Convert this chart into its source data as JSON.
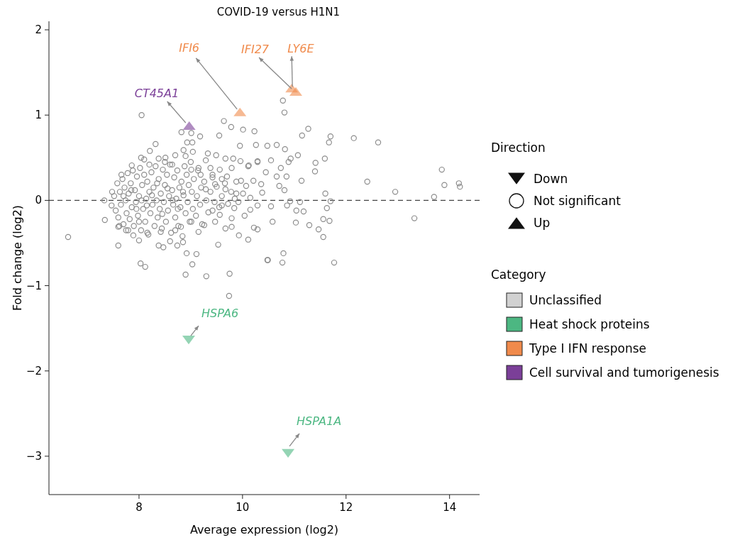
{
  "chart_data": {
    "type": "scatter",
    "title": "COVID-19 versus H1N1",
    "xlabel": "Average expression (log2)",
    "ylabel": "Fold change (log2)",
    "legend_title": "Category",
    "legend": "right",
    "xlim": [
      6.26,
      14.58
    ],
    "xticks": [
      8,
      10,
      12,
      14
    ],
    "ylim": [
      -3.45,
      2.1
    ],
    "yticks": [
      {
        "value": -3,
        "label": "−3"
      },
      {
        "value": -2,
        "label": "−2"
      },
      {
        "value": -1,
        "label": "−1"
      },
      0,
      1,
      2
    ],
    "ref_lines": [
      {
        "axis": "y",
        "value": 0,
        "color": "#444444",
        "line_style": "dashed"
      }
    ],
    "annotations": [
      {
        "text": "CT45A1",
        "x": 8.97,
        "y": 0.86
      },
      {
        "text": "IFI6",
        "x": 9.95,
        "y": 1.02
      },
      {
        "text": "IFI27",
        "x": 11.03,
        "y": 1.26
      },
      {
        "text": "LY6E",
        "x": 10.95,
        "y": 1.3
      },
      {
        "text": "HSPA6",
        "x": 8.96,
        "y": -1.62
      },
      {
        "text": "HSPA1A",
        "x": 10.88,
        "y": -2.95
      },
      "Direction",
      "Down",
      "Not significant",
      "Up"
    ],
    "series": [
      {
        "name": "Unclassified",
        "color": "#8c8c8c",
        "marker": "circle",
        "x": [
          6.63,
          7.33,
          7.34,
          7.6,
          8.05,
          8.03,
          8.12,
          8.38,
          8.47,
          8.9,
          9.3,
          9.03,
          9.11,
          8.92,
          9.53,
          9.75,
          9.74,
          10.48,
          8.82,
          9.01,
          9.18,
          9.64,
          9.78,
          10.01,
          10.23,
          9.55,
          8.32,
          8.21,
          8.93,
          9.03,
          9.95,
          10.26,
          10.48,
          10.78,
          10.81,
          11.27,
          11.15,
          11.7,
          11.67,
          12.15,
          12.62,
          10.66,
          10.82,
          11.07,
          10.93,
          10.89,
          11.59,
          11.41,
          11.4,
          10.55,
          10.29,
          10.74,
          10.45,
          10.66,
          10.85,
          11.14,
          12.41,
          13.85,
          13.9,
          14.18,
          14.2,
          12.95,
          13.7,
          11.6,
          10.81,
          10.71,
          11.7,
          11.11,
          10.92,
          11.63,
          11.04,
          11.18,
          10.86,
          10.55,
          10.29,
          10.15,
          10.58,
          11.56,
          11.68,
          11.03,
          11.29,
          11.47,
          11.56,
          13.32,
          10.22,
          10.29,
          10.11,
          10.79,
          10.49,
          10.77,
          11.77,
          10.36,
          10.38,
          10.12,
          7.86,
          8.04,
          8.1,
          8.38,
          8.51,
          8.7,
          8.86,
          8.9,
          9.04,
          9.33,
          9.49,
          9.67,
          9.82,
          9.96,
          10.29,
          7.66,
          7.48,
          7.47,
          7.6,
          7.79,
          7.89,
          8.0,
          8.16,
          8.42,
          8.6,
          8.74,
          8.85,
          8.81,
          9.01,
          9.15,
          9.26,
          9.47,
          9.67,
          9.79,
          9.93,
          10.04,
          9.79,
          9.56,
          9.42,
          9.6,
          9.84,
          9.88,
          10.01,
          10.15,
          9.67,
          9.47,
          9.29,
          9.6,
          9.88,
          10.07,
          9.7,
          9.97,
          10.21,
          9.19,
          9.42,
          9.56,
          9.79,
          10.11,
          9.29,
          9.38,
          9.15,
          9.01,
          8.64,
          7.52,
          7.55,
          7.58,
          7.6,
          7.63,
          7.65,
          7.68,
          7.7,
          7.72,
          7.74,
          7.76,
          7.78,
          7.8,
          7.82,
          7.84,
          7.86,
          7.88,
          7.9,
          7.92,
          7.94,
          7.96,
          7.98,
          8.0,
          8.02,
          8.04,
          8.06,
          8.08,
          8.1,
          8.12,
          8.14,
          8.16,
          8.18,
          8.2,
          8.22,
          8.24,
          8.26,
          8.28,
          8.3,
          8.32,
          8.34,
          8.36,
          8.38,
          8.4,
          8.42,
          8.44,
          8.46,
          8.48,
          8.5,
          8.52,
          8.54,
          8.56,
          8.58,
          8.6,
          8.62,
          8.64,
          8.66,
          8.68,
          8.7,
          8.72,
          8.74,
          8.76,
          8.78,
          8.8,
          8.82,
          8.84,
          8.86,
          8.88,
          8.9,
          8.92,
          8.94,
          8.96,
          8.98,
          9.0,
          9.02,
          9.04,
          9.06,
          9.1,
          9.12,
          9.14,
          9.18,
          9.2,
          9.22,
          9.26,
          9.3,
          9.34,
          9.38,
          9.42,
          9.46,
          9.5,
          9.55,
          9.6,
          9.66,
          9.72,
          9.78,
          9.85,
          9.92,
          7.7,
          7.85,
          7.95,
          8.05,
          8.15,
          8.25,
          8.35,
          8.45,
          8.55,
          8.65,
          8.75,
          8.85,
          7.62,
          7.75,
          8.0,
          8.2,
          8.5,
          8.7
        ],
        "values": [
          -0.43,
          0,
          -0.23,
          -0.53,
          1.0,
          -0.74,
          -0.78,
          -0.53,
          -0.55,
          -0.87,
          -0.89,
          -0.75,
          -0.63,
          -0.62,
          -0.52,
          -0.86,
          -1.12,
          -0.7,
          0.8,
          0.79,
          0.75,
          0.93,
          0.86,
          0.83,
          0.81,
          0.76,
          0.66,
          0.58,
          0.68,
          0.68,
          0.64,
          0.65,
          0.64,
          1.17,
          1.03,
          0.84,
          0.76,
          0.75,
          0.68,
          0.73,
          0.68,
          0.65,
          0.6,
          0.53,
          0.49,
          0.45,
          0.49,
          0.44,
          0.34,
          0.47,
          0.46,
          0.38,
          0.33,
          0.28,
          0.28,
          0.23,
          0.22,
          0.36,
          0.18,
          0.2,
          0.16,
          0.1,
          0.04,
          0.08,
          0.12,
          0.17,
          -0.01,
          -0.02,
          -0.01,
          -0.09,
          -0.12,
          -0.13,
          -0.06,
          -0.07,
          -0.06,
          -0.11,
          -0.25,
          -0.22,
          -0.24,
          -0.26,
          -0.29,
          -0.34,
          -0.43,
          -0.21,
          -0.32,
          -0.34,
          -0.46,
          -0.62,
          -0.7,
          -0.73,
          -0.73,
          0.19,
          0.09,
          0.41,
          0.41,
          0.5,
          0.48,
          0.49,
          0.5,
          0.53,
          0.59,
          0.52,
          0.57,
          0.55,
          0.53,
          0.49,
          0.49,
          0.46,
          0.45,
          0.3,
          0.1,
          -0.06,
          -0.31,
          -0.35,
          -0.41,
          -0.47,
          -0.38,
          -0.37,
          -0.48,
          -0.53,
          -0.49,
          -0.31,
          -0.25,
          -0.37,
          -0.29,
          -0.25,
          -0.33,
          -0.31,
          -0.41,
          -0.18,
          -0.21,
          -0.17,
          -0.12,
          -0.06,
          -0.09,
          0.08,
          0.08,
          0.03,
          0.13,
          0.19,
          0.13,
          0.25,
          0.22,
          0.17,
          0.28,
          0.23,
          0.23,
          0.3,
          0.27,
          0.36,
          0.38,
          0.4,
          0.47,
          0.38,
          0.38,
          0.36,
          0.42,
          0.05,
          -0.12,
          0.2,
          -0.2,
          0.1,
          -0.05,
          0.25,
          -0.28,
          0.15,
          0.0,
          -0.15,
          0.32,
          0.08,
          -0.22,
          0.2,
          -0.08,
          0.35,
          -0.3,
          0.12,
          -0.02,
          0.28,
          -0.18,
          0.05,
          0.38,
          -0.35,
          0.18,
          -0.1,
          0.3,
          -0.25,
          0.02,
          0.22,
          -0.4,
          0.1,
          -0.15,
          0.33,
          -0.05,
          0.15,
          -0.3,
          0.4,
          0.0,
          -0.2,
          0.25,
          -0.1,
          0.08,
          -0.33,
          0.36,
          -0.02,
          0.18,
          -0.25,
          0.3,
          -0.12,
          0.05,
          0.42,
          -0.38,
          0.12,
          -0.05,
          0.27,
          -0.2,
          0.02,
          0.35,
          -0.3,
          0.15,
          -0.08,
          0.22,
          -0.42,
          0.06,
          0.4,
          -0.15,
          0.3,
          -0.02,
          0.18,
          -0.25,
          0.45,
          0.1,
          -0.1,
          0.25,
          -0.18,
          0.05,
          0.35,
          -0.05,
          0.15,
          -0.28,
          0.22,
          0.0,
          -0.14,
          0.1,
          0.3,
          -0.02,
          0.16,
          -0.08,
          0.05,
          0.2,
          -0.04,
          0.1,
          0.02,
          -0.02,
          0.05,
          0.12,
          -0.1,
          0.0,
          -0.06,
          0.06,
          0.2,
          -0.16,
          0.14,
          0.0,
          -0.1,
          0.1,
          -0.3,
          -0.35,
          -0.25,
          0.42,
          0.45,
          -0.35
        ]
      },
      {
        "name": "Heat shock proteins",
        "color": "#4cb782",
        "marker": "triangle",
        "x": [
          8.96,
          10.88
        ],
        "values": [
          -1.62,
          -2.95
        ]
      },
      {
        "name": "Type I IFN response",
        "color": "#f08a4b",
        "marker": "triangle",
        "x": [
          9.95,
          11.03,
          10.95
        ],
        "values": [
          1.02,
          1.26,
          1.3
        ]
      },
      {
        "name": "Cell survival and tumorigenesis",
        "color": "#7b3f98",
        "marker": "triangle",
        "x": [
          8.97
        ],
        "values": [
          0.86
        ]
      }
    ]
  }
}
